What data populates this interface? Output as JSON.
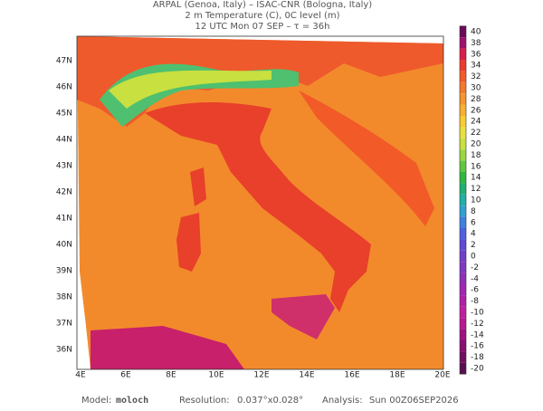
{
  "header": {
    "line1": "ARPAL (Genoa, Italy)  –  ISAC-CNR (Bologna, Italy)",
    "line2": "2 m Temperature (C), 0C level (m)",
    "line3": "12 UTC Mon 07 SEP  –  τ = 36h"
  },
  "map": {
    "lat_labels": [
      "47N",
      "46N",
      "45N",
      "44N",
      "43N",
      "42N",
      "41N",
      "40N",
      "39N",
      "38N",
      "37N",
      "36N"
    ],
    "lon_labels": [
      "4E",
      "6E",
      "8E",
      "10E",
      "12E",
      "14E",
      "16E",
      "18E",
      "20E"
    ]
  },
  "colorbar": {
    "values": [
      40,
      38,
      36,
      34,
      32,
      30,
      28,
      26,
      24,
      22,
      20,
      18,
      16,
      14,
      12,
      10,
      8,
      6,
      4,
      2,
      0,
      -2,
      -4,
      -6,
      -8,
      -10,
      -12,
      -14,
      -16,
      -18,
      -20
    ],
    "colors": [
      "#6a0a5a",
      "#a0106e",
      "#d8204a",
      "#ee3a2e",
      "#f25a28",
      "#f37a2a",
      "#f5952c",
      "#f7b030",
      "#f8cc32",
      "#e8e040",
      "#c8e040",
      "#9ad840",
      "#60c840",
      "#30b840",
      "#20b070",
      "#20b0a8",
      "#30a0d0",
      "#4080e0",
      "#5060e0",
      "#6048d8",
      "#7040c8",
      "#8038c0",
      "#9030b8",
      "#a028b0",
      "#b020a8",
      "#c020a0",
      "#b81890",
      "#a01080",
      "#881070",
      "#701060",
      "#581050"
    ]
  },
  "footer": {
    "model_label": "Model:",
    "model": "moloch",
    "resolution_label": "Resolution:",
    "resolution": "0.037°x0.028°",
    "analysis_label": "Analysis:",
    "analysis": "Sun 00Z06SEP2026"
  }
}
